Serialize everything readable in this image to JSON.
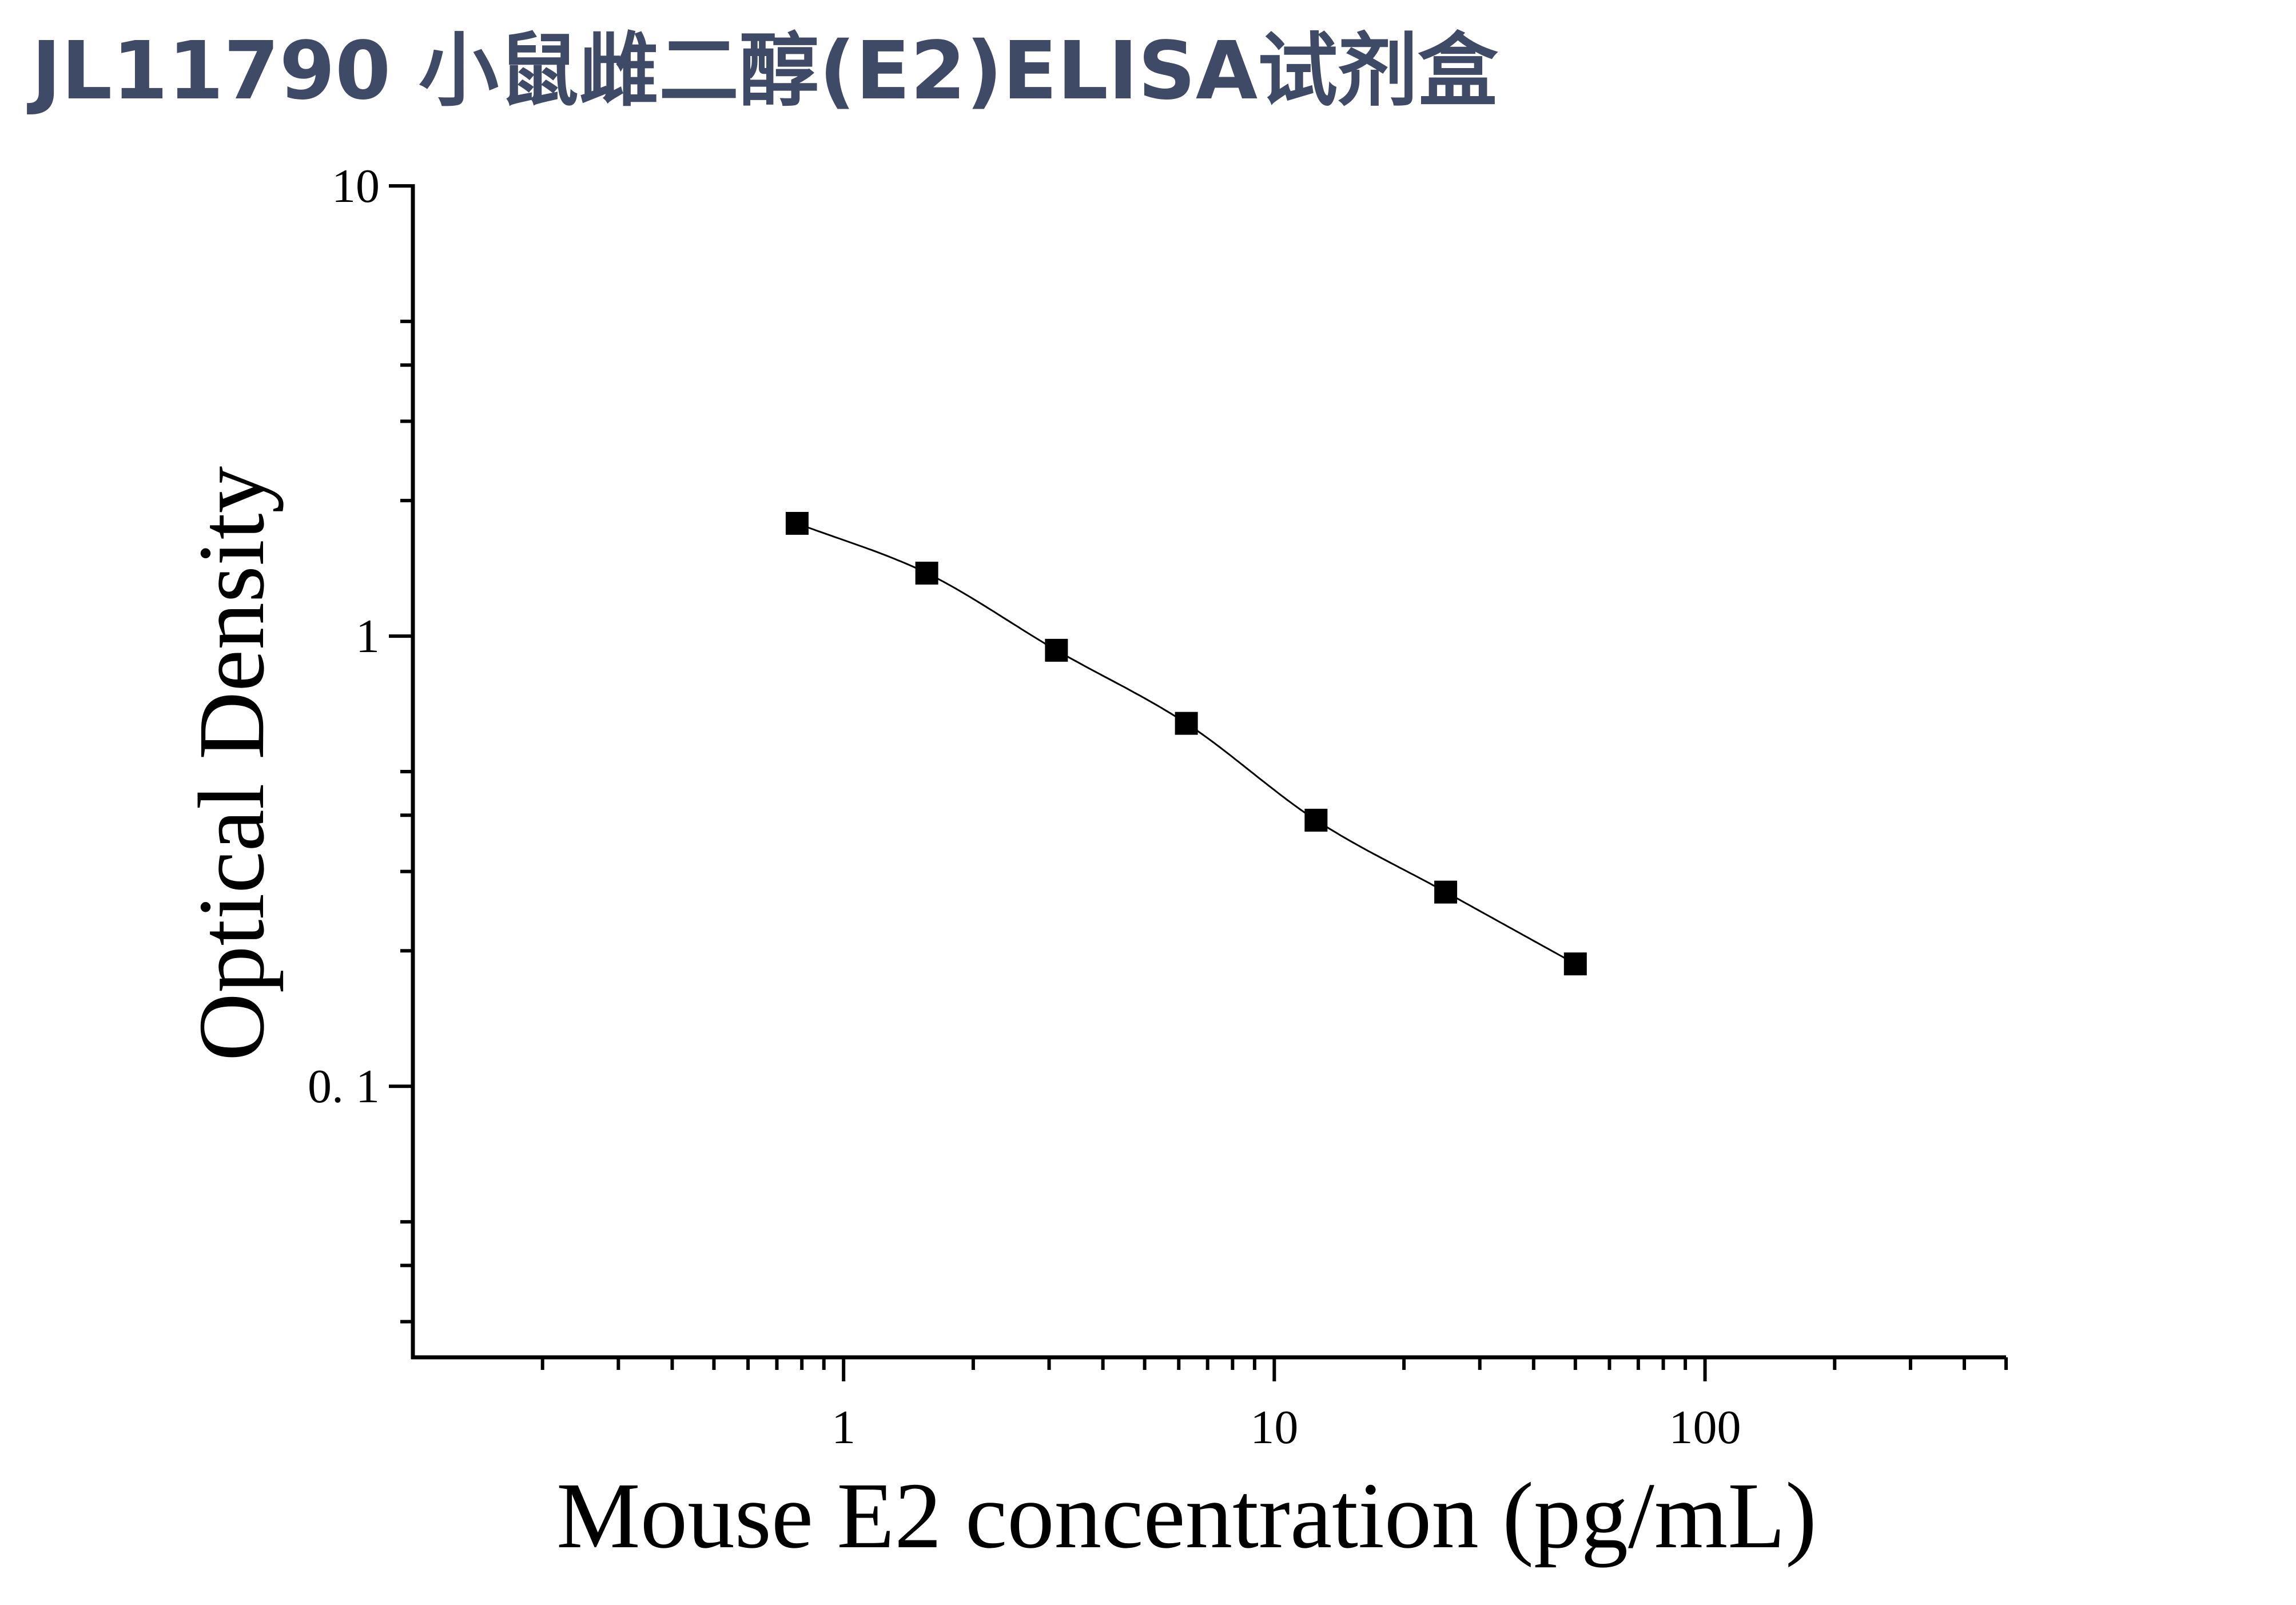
{
  "chart_data": {
    "type": "scatter",
    "title": "JL11790 小鼠雌二醇(E2)ELISA试剂盒",
    "xlabel": "Mouse E2 concentration (pg/mL)",
    "ylabel": "Optical Density",
    "x_scale": "log",
    "y_scale": "log",
    "xlim": [
      0.1,
      500
    ],
    "ylim": [
      0.025,
      10
    ],
    "x_ticks": [
      1,
      10,
      100
    ],
    "x_tick_labels": [
      "1",
      "10",
      "100"
    ],
    "y_ticks": [
      0.1,
      1,
      10
    ],
    "y_tick_labels": [
      "0. 1",
      "1",
      "10"
    ],
    "grid": false,
    "legend": "none",
    "series": [
      {
        "x": [
          0.78,
          1.56,
          3.12,
          6.25,
          12.5,
          25,
          50
        ],
        "y": [
          1.78,
          1.38,
          0.93,
          0.64,
          0.39,
          0.27,
          0.187
        ]
      }
    ],
    "fit_curve": true,
    "colors": {
      "title": "#3f4a66",
      "marks": "#000000"
    }
  }
}
